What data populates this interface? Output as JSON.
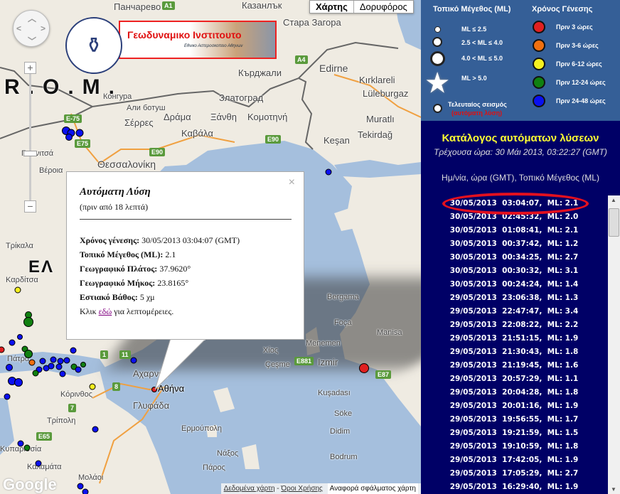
{
  "map": {
    "type_buttons": [
      "Χάρτης",
      "Δορυφόρος"
    ],
    "country_label": "R.O.M.",
    "places": [
      "Пaнчарево",
      "Казанлък",
      "Стара Загора",
      "Кърджали",
      "Златоград",
      "Конгура",
      "Али ботуш",
      "Σέρρες",
      "Δράμα",
      "Καβάλα",
      "Ξάνθη",
      "Κομοτηνή",
      "Edirne",
      "Kırklareli",
      "Lüleburgaz",
      "Muratlı",
      "Tekirdağ",
      "Keşan",
      "Θεσσαλονίκη",
      "Βέροια",
      "Γιαννιτσά",
      "Σέρρες",
      "Τρίκαλα",
      "Καρδίτσα",
      "Αχαρνές",
      "Αθήνα",
      "Γλυφάδα",
      "Κόρινθος",
      "Τρίπολη",
      "Καλαμάτα",
      "Ερμούπολη",
      "Νάξος",
      "Πάρος",
      "Χίος",
      "Çeşme",
      "Izmir",
      "Menemen",
      "Manisa",
      "Kuşadası",
      "Söke",
      "Didim",
      "Bodrum",
      "Bergama",
      "Foça",
      "Κυπαρισσία",
      "Μολάοι",
      "Πάτρα",
      "ΕΛ"
    ],
    "roads": [
      "E-75",
      "E75",
      "E90",
      "E90",
      "A1",
      "A4",
      "8",
      "7",
      "1",
      "11",
      "E65",
      "E881",
      "E87"
    ],
    "logo": {
      "title": "Γεωδυναμικο Ινστιτουτο",
      "subtitle": "Εθνικο Αστεροσκοπειο Αθηνων"
    },
    "google": "Google",
    "footer": {
      "data_link": "Δεδομένα χάρτη",
      "sep": " - ",
      "terms_link": "Όροι Χρήσης",
      "report": "Αναφορά σφάλματος χάρτη"
    }
  },
  "popup": {
    "title": "Αυτόματη Λύση",
    "ago": "(πριν από 18 λεπτά)",
    "origin_label": "Χρόνος γένεσης:",
    "origin_value": " 30/05/2013  03:04:07 (GMT)",
    "mag_label": "Τοπικό Μέγεθος (ML):",
    "mag_value": " 2.1",
    "lat_label": "Γεωγραφικό Πλάτος:",
    "lat_value": " 37.9620°",
    "lon_label": "Γεωγραφικό Μήκος:",
    "lon_value": " 23.8165°",
    "depth_label": "Εστιακό Βάθος:",
    "depth_value": " 5 χμ",
    "click_pre": "Κλικ ",
    "click_link": "εδώ",
    "click_post": " για λεπτομέρειες.",
    "close": "×"
  },
  "legend": {
    "mag_title": "Τοπικό Μέγεθος (ML)",
    "mag_items": [
      "ML ≤ 2.5",
      "2.5 < ML ≤ 4.0",
      "4.0 < ML ≤ 5.0",
      "ML > 5.0"
    ],
    "last_label": "Τελευταίος σεισμός",
    "last_sub": "(αυτόματη λύση)",
    "time_title": "Χρόνος Γένεσης",
    "time_items": [
      {
        "label": "Πριν 3 ώρες",
        "color": "#e02020"
      },
      {
        "label": "Πριν 3-6 ώρες",
        "color": "#f07010"
      },
      {
        "label": "Πριν 6-12 ώρες",
        "color": "#f5f020"
      },
      {
        "label": "Πριν 12-24 ώρες",
        "color": "#108010"
      },
      {
        "label": "Πριν 24-48 ώρες",
        "color": "#0a10f0"
      }
    ]
  },
  "panel": {
    "title": "Κατάλογος αυτόματων λύσεων",
    "current": "Τρέχουσα ώρα: 30 Μάι 2013, 03:22:27 (GMT)",
    "header": "Ημ/νία, ώρα (GMT), Τοπικό Μέγεθος (ML)",
    "events": [
      "30/05/2013  03:04:07,  ML: 2.1",
      "30/05/2013  02:45:32,  ML: 2.0",
      "30/05/2013  01:08:41,  ML: 2.1",
      "30/05/2013  00:37:42,  ML: 1.2",
      "30/05/2013  00:34:25,  ML: 2.7",
      "30/05/2013  00:30:32,  ML: 3.1",
      "30/05/2013  00:24:24,  ML: 1.4",
      "29/05/2013  23:06:38,  ML: 1.3",
      "29/05/2013  22:47:47,  ML: 3.4",
      "29/05/2013  22:08:22,  ML: 2.2",
      "29/05/2013  21:51:15,  ML: 1.9",
      "29/05/2013  21:30:43,  ML: 1.8",
      "29/05/2013  21:19:45,  ML: 1.6",
      "29/05/2013  20:57:29,  ML: 1.1",
      "29/05/2013  20:04:28,  ML: 1.8",
      "29/05/2013  20:01:16,  ML: 1.9",
      "29/05/2013  19:56:55,  ML: 1.7",
      "29/05/2013  19:21:59,  ML: 1.5",
      "29/05/2013  19:10:59,  ML: 1.8",
      "29/05/2013  17:42:05,  ML: 1.9",
      "29/05/2013  17:05:29,  ML: 2.7",
      "29/05/2013  16:29:40,  ML: 1.9"
    ]
  }
}
